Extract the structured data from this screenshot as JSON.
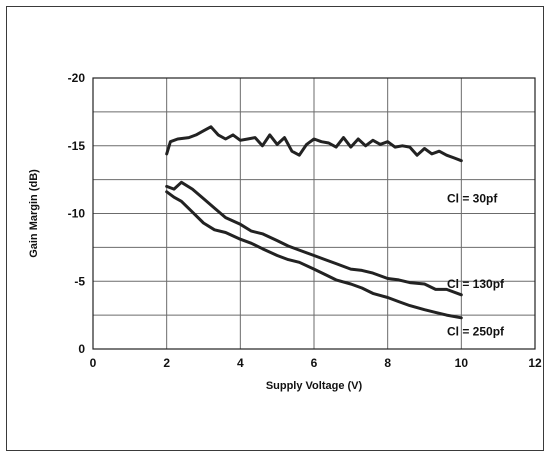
{
  "chart_data": {
    "type": "line",
    "title": "",
    "xlabel": "Supply Voltage (V)",
    "ylabel": "Gain Margin (dB)",
    "xlim": [
      0,
      12
    ],
    "ylim": [
      0,
      -20
    ],
    "x_ticks": [
      0,
      2,
      4,
      6,
      8,
      10,
      12
    ],
    "y_ticks": [
      0,
      -5,
      -10,
      -15,
      -20
    ],
    "x_tick_labels": [
      "0",
      "2",
      "4",
      "6",
      "8",
      "10",
      "12"
    ],
    "y_tick_labels": [
      "0",
      "-5",
      "-10",
      "-15",
      "-20"
    ],
    "grid": true,
    "legend": "inline labels at right",
    "line_color": "#222222",
    "series": [
      {
        "name": "Cl = 30pf",
        "label": "Cl = 30pf",
        "x": [
          2.0,
          2.1,
          2.3,
          2.6,
          2.8,
          3.0,
          3.2,
          3.4,
          3.6,
          3.8,
          4.0,
          4.2,
          4.4,
          4.6,
          4.8,
          5.0,
          5.2,
          5.4,
          5.6,
          5.8,
          6.0,
          6.2,
          6.4,
          6.6,
          6.8,
          7.0,
          7.2,
          7.4,
          7.6,
          7.8,
          8.0,
          8.2,
          8.4,
          8.6,
          8.8,
          9.0,
          9.2,
          9.4,
          9.6,
          9.8,
          10.0
        ],
        "y": [
          -14.4,
          -15.3,
          -15.5,
          -15.6,
          -15.8,
          -16.1,
          -16.4,
          -15.8,
          -15.5,
          -15.8,
          -15.4,
          -15.5,
          -15.6,
          -15.0,
          -15.8,
          -15.1,
          -15.6,
          -14.6,
          -14.3,
          -15.1,
          -15.5,
          -15.3,
          -15.2,
          -14.9,
          -15.6,
          -14.9,
          -15.5,
          -15.0,
          -15.4,
          -15.1,
          -15.3,
          -14.9,
          -15.0,
          -14.9,
          -14.3,
          -14.8,
          -14.4,
          -14.6,
          -14.3,
          -14.1,
          -13.9
        ]
      },
      {
        "name": "Cl = 130pf",
        "label": "Cl = 130pf",
        "x": [
          2.0,
          2.2,
          2.4,
          2.7,
          3.0,
          3.3,
          3.6,
          4.0,
          4.3,
          4.6,
          5.0,
          5.3,
          5.6,
          6.0,
          6.3,
          6.6,
          7.0,
          7.3,
          7.6,
          8.0,
          8.3,
          8.6,
          9.0,
          9.3,
          9.6,
          10.0
        ],
        "y": [
          -12.0,
          -11.8,
          -12.3,
          -11.8,
          -11.1,
          -10.4,
          -9.7,
          -9.2,
          -8.7,
          -8.5,
          -8.0,
          -7.6,
          -7.3,
          -6.9,
          -6.6,
          -6.3,
          -5.9,
          -5.8,
          -5.6,
          -5.2,
          -5.1,
          -4.9,
          -4.8,
          -4.4,
          -4.4,
          -4.0
        ]
      },
      {
        "name": "Cl = 250pf",
        "label": "Cl = 250pf",
        "x": [
          2.0,
          2.2,
          2.4,
          2.7,
          3.0,
          3.3,
          3.6,
          4.0,
          4.3,
          4.6,
          5.0,
          5.3,
          5.6,
          6.0,
          6.3,
          6.6,
          7.0,
          7.3,
          7.6,
          8.0,
          8.3,
          8.6,
          9.0,
          9.3,
          9.6,
          10.0
        ],
        "y": [
          -11.6,
          -11.2,
          -10.9,
          -10.1,
          -9.3,
          -8.8,
          -8.6,
          -8.1,
          -7.8,
          -7.4,
          -6.9,
          -6.6,
          -6.4,
          -5.9,
          -5.5,
          -5.1,
          -4.8,
          -4.5,
          -4.1,
          -3.8,
          -3.5,
          -3.2,
          -2.9,
          -2.7,
          -2.5,
          -2.3
        ]
      }
    ]
  }
}
